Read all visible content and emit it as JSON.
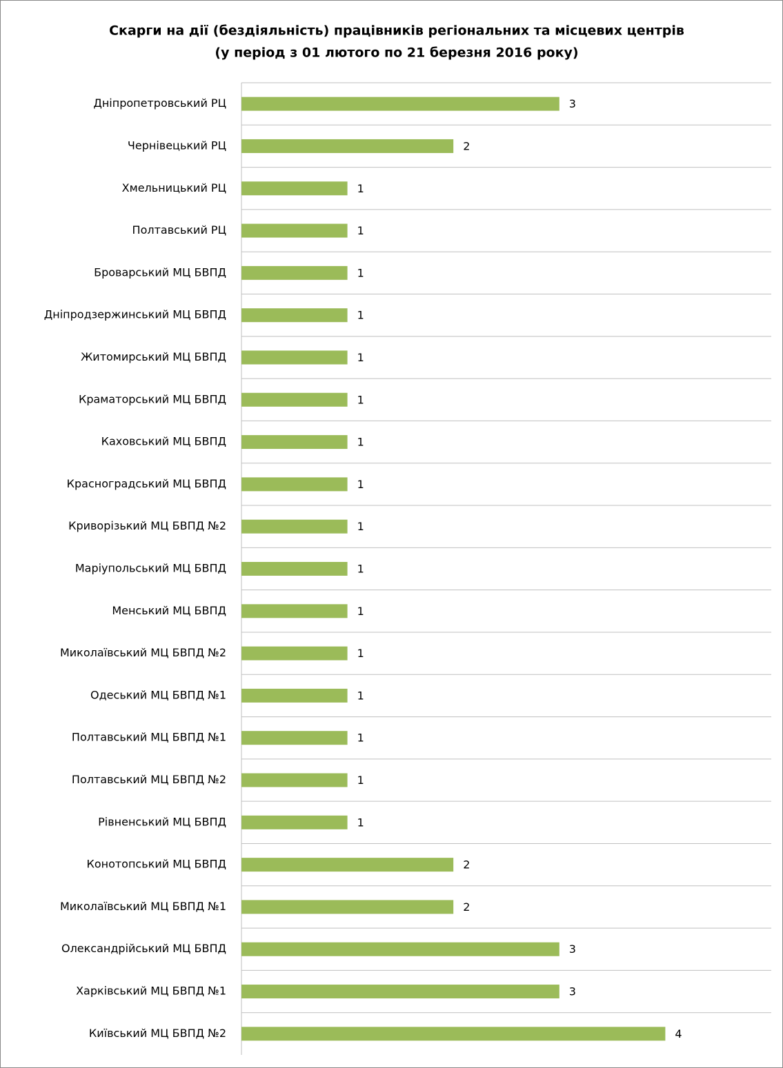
{
  "chart_data": {
    "type": "barh",
    "title": "Скарги на дії (бездіяльність) працівників регіональних та місцевих центрів",
    "subtitle": "(у період з 01 лютого по 21 березня 2016 року)",
    "categories": [
      "Дніпропетровський РЦ",
      "Чернівецький РЦ",
      "Хмельницький РЦ",
      "Полтавський РЦ",
      "Броварський МЦ БВПД",
      "Дніпродзержинський МЦ БВПД",
      "Житомирський МЦ БВПД",
      "Краматорський МЦ БВПД",
      "Каховський МЦ БВПД",
      "Красноградський МЦ БВПД",
      "Криворізький МЦ БВПД №2",
      "Маріупольський МЦ БВПД",
      "Менський МЦ БВПД",
      "Миколаївський МЦ БВПД №2",
      "Одеський МЦ БВПД №1",
      "Полтавський МЦ БВПД №1",
      "Полтавський МЦ БВПД №2",
      "Рівненський МЦ БВПД",
      "Конотопський МЦ БВПД",
      "Миколаївський МЦ БВПД №1",
      "Олександрійський МЦ БВПД",
      "Харківський МЦ БВПД №1",
      "Київський МЦ БВПД №2"
    ],
    "values": [
      3,
      2,
      1,
      1,
      1,
      1,
      1,
      1,
      1,
      1,
      1,
      1,
      1,
      1,
      1,
      1,
      1,
      1,
      2,
      2,
      3,
      3,
      4
    ],
    "color": "#9bbb59",
    "xlim": [
      0,
      5
    ]
  }
}
